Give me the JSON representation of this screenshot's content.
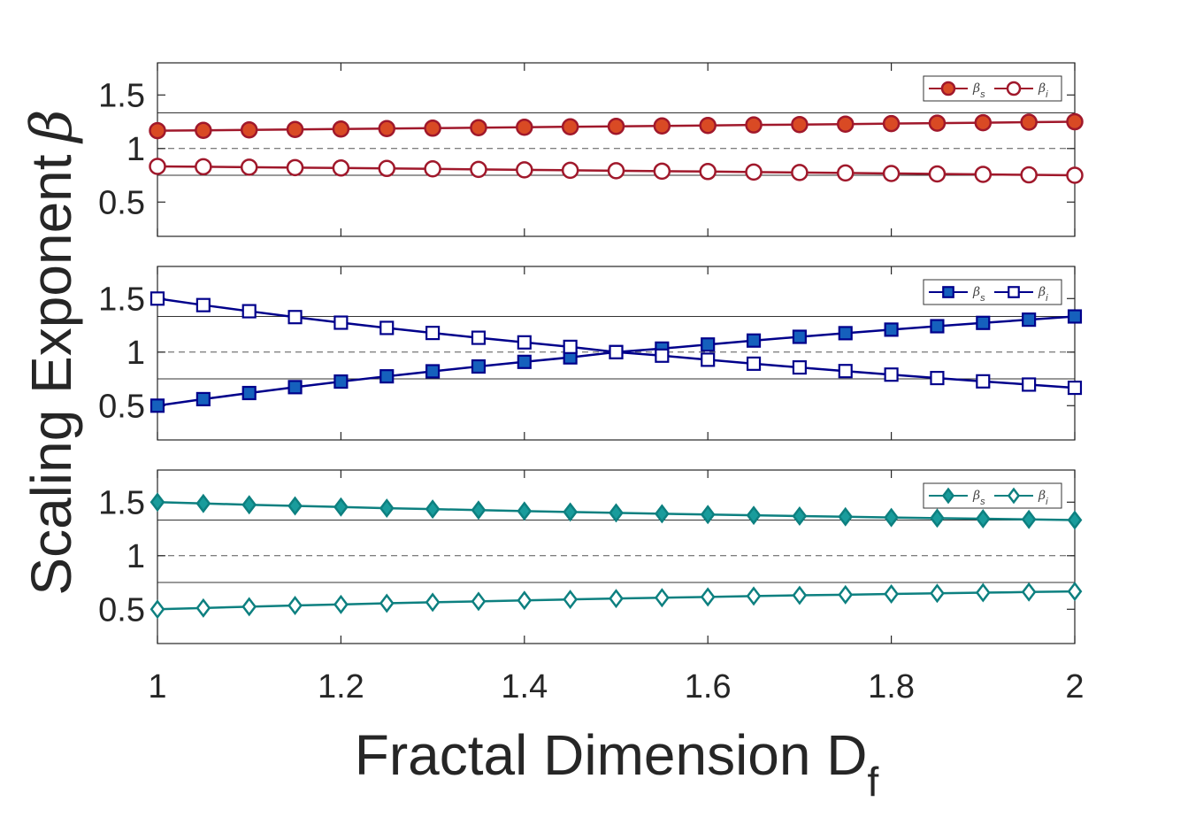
{
  "chart_data": {
    "type": "line",
    "xlabel": "Fractal Dimension D",
    "xlabel_subscript": "f",
    "ylabel": "Scaling Exponent",
    "ylabel_symbol": "β",
    "x": [
      1,
      1.05,
      1.1,
      1.15,
      1.2,
      1.25,
      1.3,
      1.35,
      1.4,
      1.45,
      1.5,
      1.55,
      1.6,
      1.65,
      1.7,
      1.75,
      1.8,
      1.85,
      1.9,
      1.95,
      2
    ],
    "xlim": [
      1,
      2
    ],
    "xticks": [
      1,
      1.2,
      1.4,
      1.6,
      1.8,
      2
    ],
    "xtick_labels": [
      "1",
      "1.2",
      "1.4",
      "1.6",
      "1.8",
      "2"
    ],
    "reference_lines": {
      "dashed": 1,
      "solid": [
        0.75,
        1.333
      ]
    },
    "panels": [
      {
        "ylim": [
          0.18,
          1.8
        ],
        "yticks": [
          0.5,
          1,
          1.5
        ],
        "ytick_labels": [
          "0.5",
          "1",
          "1.5"
        ],
        "color": "#A0182B",
        "fill": "#D94A24",
        "marker": "circle",
        "legend_symbol": "β",
        "series": [
          {
            "name": "β_s",
            "label": "s",
            "filled": true,
            "values": [
              1.167,
              1.17,
              1.174,
              1.178,
              1.182,
              1.186,
              1.19,
              1.195,
              1.199,
              1.203,
              1.207,
              1.211,
              1.215,
              1.22,
              1.224,
              1.228,
              1.233,
              1.237,
              1.241,
              1.246,
              1.25
            ]
          },
          {
            "name": "β_i",
            "label": "i",
            "filled": false,
            "values": [
              0.833,
              0.83,
              0.826,
              0.822,
              0.818,
              0.814,
              0.81,
              0.805,
              0.801,
              0.797,
              0.793,
              0.789,
              0.785,
              0.78,
              0.776,
              0.772,
              0.767,
              0.763,
              0.759,
              0.754,
              0.75
            ]
          }
        ]
      },
      {
        "ylim": [
          0.18,
          1.8
        ],
        "yticks": [
          0.5,
          1,
          1.5
        ],
        "ytick_labels": [
          "0.5",
          "1",
          "1.5"
        ],
        "color": "#00008B",
        "fill": "#1560BD",
        "marker": "square",
        "legend_symbol": "β",
        "series": [
          {
            "name": "β_s",
            "label": "s",
            "filled": true,
            "values": [
              0.5,
              0.561,
              0.618,
              0.673,
              0.725,
              0.774,
              0.821,
              0.866,
              0.909,
              0.951,
              1.0,
              1.033,
              1.071,
              1.108,
              1.143,
              1.177,
              1.21,
              1.242,
              1.273,
              1.303,
              1.333
            ]
          },
          {
            "name": "β_i",
            "label": "i",
            "filled": false,
            "values": [
              1.5,
              1.439,
              1.382,
              1.327,
              1.275,
              1.226,
              1.179,
              1.134,
              1.091,
              1.049,
              1.0,
              0.967,
              0.929,
              0.892,
              0.857,
              0.823,
              0.79,
              0.758,
              0.727,
              0.697,
              0.667
            ]
          }
        ]
      },
      {
        "ylim": [
          0.18,
          1.8
        ],
        "yticks": [
          0.5,
          1,
          1.5
        ],
        "ytick_labels": [
          "0.5",
          "1",
          "1.5"
        ],
        "color": "#0D8080",
        "fill": "#199C9C",
        "marker": "diamond",
        "legend_symbol": "β",
        "series": [
          {
            "name": "β_s",
            "label": "s",
            "filled": true,
            "values": [
              1.5,
              1.488,
              1.476,
              1.465,
              1.455,
              1.444,
              1.435,
              1.426,
              1.417,
              1.408,
              1.4,
              1.392,
              1.385,
              1.377,
              1.37,
              1.364,
              1.357,
              1.351,
              1.345,
              1.339,
              1.333
            ]
          },
          {
            "name": "β_i",
            "label": "i",
            "filled": false,
            "values": [
              0.5,
              0.512,
              0.524,
              0.535,
              0.545,
              0.556,
              0.565,
              0.574,
              0.583,
              0.592,
              0.6,
              0.608,
              0.615,
              0.623,
              0.63,
              0.636,
              0.643,
              0.649,
              0.655,
              0.661,
              0.667
            ]
          }
        ]
      }
    ]
  }
}
